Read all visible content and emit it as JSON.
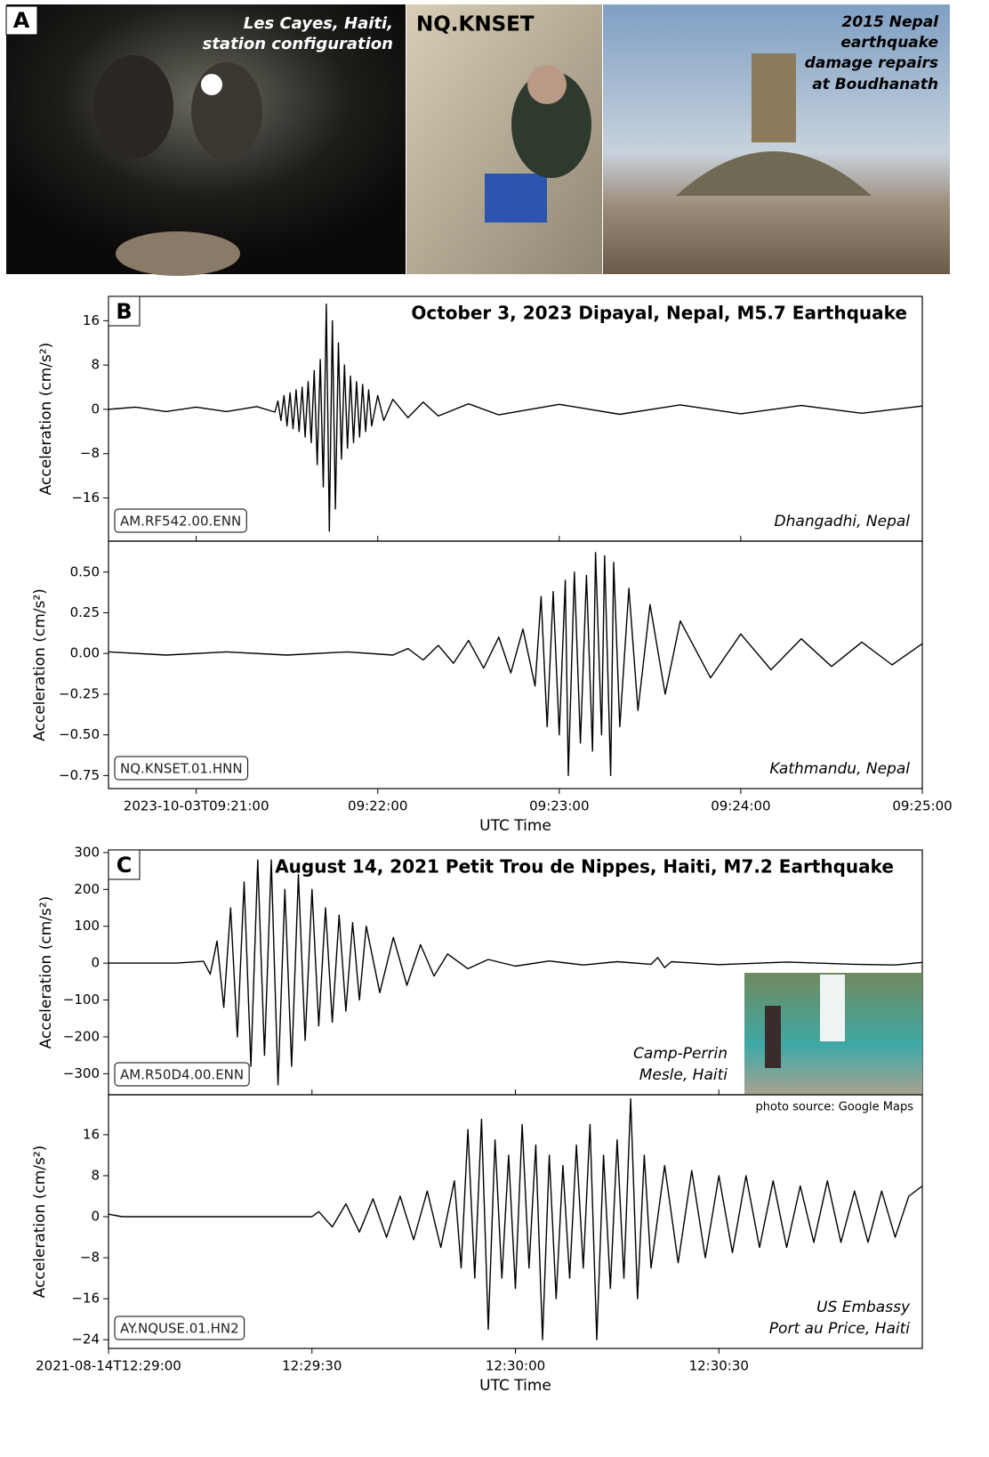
{
  "panel_a": {
    "label": "A",
    "photos": [
      {
        "caption_lines": [
          "Les Cayes, Haiti,",
          "station configuration"
        ]
      },
      {
        "caption_lines": [
          "NQ.KNSET"
        ]
      },
      {
        "caption_lines": [
          "2015 Nepal",
          "earthquake",
          "damage repairs",
          "at Boudhanath"
        ]
      }
    ]
  },
  "chart_data": [
    {
      "type": "line",
      "panel_label": "B",
      "title": "October 3, 2023 Dipayal, Nepal, M5.7 Earthquake",
      "station": "AM.RF542.00.ENN",
      "location_lines": [
        "Dhangadhi, Nepal"
      ],
      "ylabel": "Acceleration (cm/s²)",
      "color": "#000000",
      "xlim": [
        -29,
        240
      ],
      "ylim": [
        -23.8,
        20.4
      ],
      "yticks": [
        {
          "value": -16,
          "label": "−16"
        },
        {
          "value": -8,
          "label": "−8"
        },
        0,
        8,
        16
      ],
      "x": [
        -29,
        -20,
        -10,
        0,
        10,
        20,
        26,
        27,
        28,
        29,
        30,
        31,
        32,
        33,
        34,
        35,
        36,
        37,
        38,
        39,
        40,
        41,
        42,
        43,
        44,
        45,
        46,
        47,
        48,
        49,
        50,
        51,
        52,
        53,
        54,
        55,
        56,
        57,
        58,
        60,
        62,
        65,
        70,
        75,
        80,
        90,
        100,
        120,
        140,
        160,
        180,
        200,
        220,
        240
      ],
      "values": [
        0,
        0.4,
        -0.4,
        0.4,
        -0.4,
        0.5,
        -0.5,
        1.5,
        -2,
        2.5,
        -3,
        3,
        -3.5,
        3.5,
        -4,
        4,
        -5,
        5,
        -6,
        7,
        -10,
        9,
        -14,
        19,
        -22,
        16,
        -18,
        12,
        -9,
        8,
        -7,
        6,
        -6,
        5,
        -5,
        4.5,
        -4,
        3.5,
        -3,
        2.5,
        -2,
        1.8,
        -1.5,
        1.3,
        -1.2,
        1,
        -1,
        0.9,
        -0.9,
        0.8,
        -0.8,
        0.7,
        -0.7,
        0.6
      ]
    },
    {
      "type": "line",
      "station": "NQ.KNSET.01.HNN",
      "location_lines": [
        "Kathmandu, Nepal"
      ],
      "ylabel": "Acceleration (cm/s²)",
      "xlabel": "UTC Time",
      "color": "#000000",
      "xlim": [
        -29,
        240
      ],
      "ylim": [
        -0.83,
        0.69
      ],
      "yticks": [
        {
          "value": -0.75,
          "label": "−0.75"
        },
        {
          "value": -0.5,
          "label": "−0.50"
        },
        {
          "value": -0.25,
          "label": "−0.25"
        },
        {
          "value": 0,
          "label": "0.00"
        },
        {
          "value": 0.25,
          "label": "0.25"
        },
        {
          "value": 0.5,
          "label": "0.50"
        }
      ],
      "xticks": [
        {
          "value": 0,
          "label": "2023-10-03T09:21:00"
        },
        {
          "value": 60,
          "label": "09:22:00"
        },
        {
          "value": 120,
          "label": "09:23:00"
        },
        {
          "value": 180,
          "label": "09:24:00"
        },
        {
          "value": 240,
          "label": "09:25:00"
        }
      ],
      "x": [
        -29,
        -10,
        10,
        30,
        50,
        65,
        70,
        75,
        80,
        85,
        90,
        95,
        100,
        104,
        108,
        112,
        114,
        116,
        118,
        120,
        122,
        123,
        125,
        127,
        129,
        131,
        132,
        134,
        135,
        137,
        138,
        140,
        143,
        146,
        150,
        155,
        160,
        170,
        180,
        190,
        200,
        210,
        220,
        230,
        240
      ],
      "values": [
        0.01,
        -0.01,
        0.01,
        -0.01,
        0.01,
        -0.01,
        0.03,
        -0.04,
        0.05,
        -0.06,
        0.08,
        -0.09,
        0.1,
        -0.12,
        0.15,
        -0.2,
        0.35,
        -0.45,
        0.38,
        -0.5,
        0.45,
        -0.75,
        0.5,
        -0.55,
        0.48,
        -0.6,
        0.62,
        -0.5,
        0.6,
        -0.75,
        0.56,
        -0.45,
        0.4,
        -0.35,
        0.3,
        -0.25,
        0.2,
        -0.15,
        0.12,
        -0.1,
        0.09,
        -0.08,
        0.07,
        -0.07,
        0.06
      ]
    },
    {
      "type": "line",
      "panel_label": "C",
      "title": "August 14, 2021 Petit Trou de Nippes, Haiti, M7.2 Earthquake",
      "station": "AM.R50D4.00.ENN",
      "location_lines": [
        "Camp-Perrin",
        "Mesle, Haiti"
      ],
      "ylabel": "Acceleration (cm/s²)",
      "inset_credit": "photo source: Google Maps",
      "color": "#000000",
      "xlim": [
        0,
        120
      ],
      "ylim": [
        -357,
        307
      ],
      "yticks": [
        {
          "value": -300,
          "label": "−300"
        },
        {
          "value": -200,
          "label": "−200"
        },
        {
          "value": -100,
          "label": "−100"
        },
        0,
        100,
        200,
        300
      ],
      "x": [
        0,
        10,
        14,
        15,
        16,
        17,
        18,
        19,
        20,
        21,
        22,
        23,
        24,
        25,
        26,
        27,
        28,
        29,
        30,
        31,
        32,
        33,
        34,
        35,
        36,
        37,
        38,
        40,
        42,
        44,
        46,
        48,
        50,
        53,
        56,
        60,
        65,
        70,
        75,
        80,
        81,
        82,
        83,
        90,
        100,
        110,
        116,
        120
      ],
      "values": [
        0,
        0,
        5,
        -30,
        60,
        -120,
        150,
        -200,
        220,
        -280,
        280,
        -250,
        280,
        -330,
        200,
        -280,
        240,
        -210,
        200,
        -170,
        150,
        -160,
        130,
        -130,
        110,
        -100,
        100,
        -80,
        70,
        -60,
        50,
        -35,
        25,
        -15,
        10,
        -8,
        6,
        -5,
        4,
        -3,
        15,
        -12,
        4,
        -4,
        3,
        -3,
        -5,
        2
      ]
    },
    {
      "type": "line",
      "station": "AY.NQUSE.01.HN2",
      "location_lines": [
        "US Embassy",
        "Port au Price, Haiti"
      ],
      "ylabel": "Acceleration (cm/s²)",
      "xlabel": "UTC Time",
      "color": "#000000",
      "xlim": [
        0,
        120
      ],
      "ylim": [
        -25.7,
        23.8
      ],
      "yticks": [
        {
          "value": -24,
          "label": "−24"
        },
        {
          "value": -16,
          "label": "−16"
        },
        {
          "value": -8,
          "label": "−8"
        },
        0,
        8,
        16
      ],
      "xticks": [
        {
          "value": 0,
          "label": "2021-08-14T12:29:00"
        },
        {
          "value": 30,
          "label": "12:29:30"
        },
        {
          "value": 60,
          "label": "12:30:00"
        },
        {
          "value": 90,
          "label": "12:30:30"
        }
      ],
      "x": [
        0,
        2,
        15,
        30,
        31,
        33,
        35,
        37,
        39,
        41,
        43,
        45,
        47,
        49,
        51,
        52,
        53,
        54,
        55,
        56,
        57,
        58,
        59,
        60,
        61,
        62,
        63,
        64,
        65,
        66,
        67,
        68,
        69,
        70,
        71,
        72,
        73,
        74,
        75,
        76,
        77,
        78,
        79,
        80,
        82,
        84,
        86,
        88,
        90,
        92,
        94,
        96,
        98,
        100,
        102,
        104,
        106,
        108,
        110,
        112,
        114,
        116,
        118,
        120
      ],
      "values": [
        0.5,
        0,
        0,
        0,
        1,
        -2,
        2.5,
        -3,
        3.5,
        -4,
        4,
        -4.5,
        5,
        -6,
        7,
        -10,
        17,
        -12,
        19,
        -22,
        15,
        -12,
        12,
        -14,
        18,
        -10,
        14,
        -24,
        12,
        -16,
        10,
        -12,
        14,
        -10,
        18,
        -24,
        12,
        -14,
        15,
        -12,
        23,
        -16,
        12,
        -10,
        10,
        -9,
        9,
        -8,
        8,
        -7,
        8,
        -6,
        7,
        -6,
        6,
        -5,
        7,
        -5,
        5,
        -5,
        5,
        -4,
        4,
        6
      ]
    }
  ]
}
